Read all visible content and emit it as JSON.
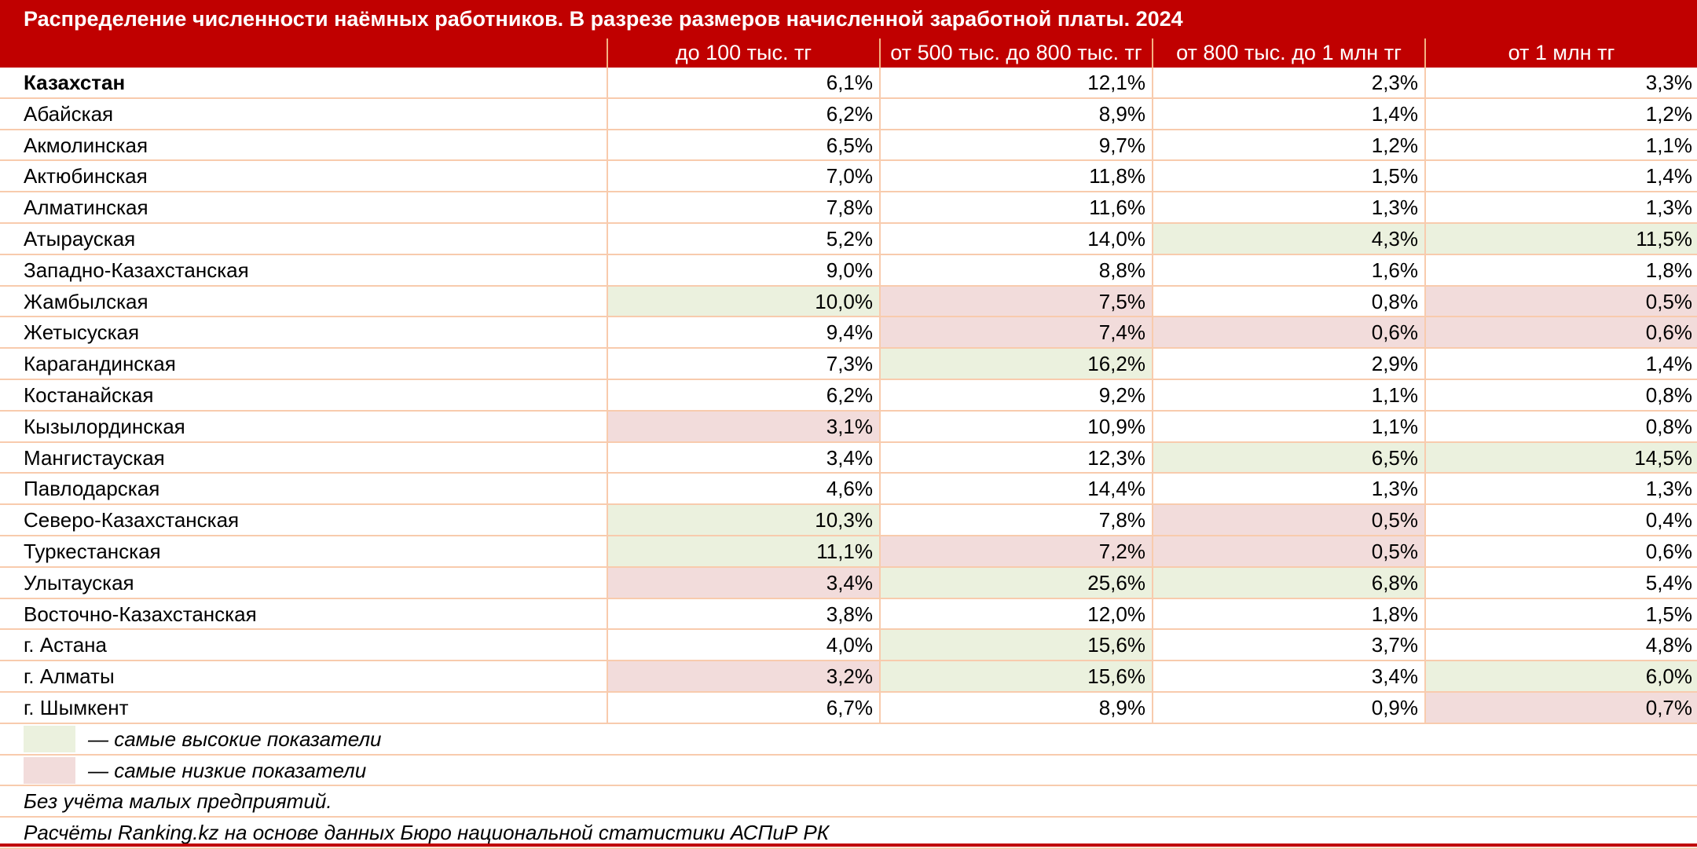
{
  "title": "Распределение численности наёмных работников. В разрезе размеров начисленной заработной платы. 2024",
  "headers": [
    "",
    "до 100 тыс. тг",
    "от 500 тыс. до 800 тыс. тг",
    "от 800 тыс. до 1 млн тг",
    "от 1 млн тг"
  ],
  "rows": [
    {
      "region": "Казахстан",
      "values": [
        "6,1%",
        "12,1%",
        "2,3%",
        "3,3%"
      ],
      "marks": [
        "",
        "",
        "",
        ""
      ],
      "bold": true
    },
    {
      "region": "Абайская",
      "values": [
        "6,2%",
        "8,9%",
        "1,4%",
        "1,2%"
      ],
      "marks": [
        "",
        "",
        "",
        ""
      ]
    },
    {
      "region": "Акмолинская",
      "values": [
        "6,5%",
        "9,7%",
        "1,2%",
        "1,1%"
      ],
      "marks": [
        "",
        "",
        "",
        ""
      ]
    },
    {
      "region": "Актюбинская",
      "values": [
        "7,0%",
        "11,8%",
        "1,5%",
        "1,4%"
      ],
      "marks": [
        "",
        "",
        "",
        ""
      ]
    },
    {
      "region": "Алматинская",
      "values": [
        "7,8%",
        "11,6%",
        "1,3%",
        "1,3%"
      ],
      "marks": [
        "",
        "",
        "",
        ""
      ]
    },
    {
      "region": "Атырауская",
      "values": [
        "5,2%",
        "14,0%",
        "4,3%",
        "11,5%"
      ],
      "marks": [
        "",
        "",
        "hi",
        "hi"
      ]
    },
    {
      "region": "Западно-Казахстанская",
      "values": [
        "9,0%",
        "8,8%",
        "1,6%",
        "1,8%"
      ],
      "marks": [
        "",
        "",
        "",
        ""
      ]
    },
    {
      "region": "Жамбылская",
      "values": [
        "10,0%",
        "7,5%",
        "0,8%",
        "0,5%"
      ],
      "marks": [
        "hi",
        "lo",
        "",
        "lo"
      ]
    },
    {
      "region": "Жетысуская",
      "values": [
        "9,4%",
        "7,4%",
        "0,6%",
        "0,6%"
      ],
      "marks": [
        "",
        "lo",
        "lo",
        "lo"
      ]
    },
    {
      "region": "Карагандинская",
      "values": [
        "7,3%",
        "16,2%",
        "2,9%",
        "1,4%"
      ],
      "marks": [
        "",
        "hi",
        "",
        ""
      ]
    },
    {
      "region": "Костанайская",
      "values": [
        "6,2%",
        "9,2%",
        "1,1%",
        "0,8%"
      ],
      "marks": [
        "",
        "",
        "",
        ""
      ]
    },
    {
      "region": "Кызылординская",
      "values": [
        "3,1%",
        "10,9%",
        "1,1%",
        "0,8%"
      ],
      "marks": [
        "lo",
        "",
        "",
        ""
      ]
    },
    {
      "region": "Мангистауская",
      "values": [
        "3,4%",
        "12,3%",
        "6,5%",
        "14,5%"
      ],
      "marks": [
        "",
        "",
        "hi",
        "hi"
      ]
    },
    {
      "region": "Павлодарская",
      "values": [
        "4,6%",
        "14,4%",
        "1,3%",
        "1,3%"
      ],
      "marks": [
        "",
        "",
        "",
        ""
      ]
    },
    {
      "region": "Северо-Казахстанская",
      "values": [
        "10,3%",
        "7,8%",
        "0,5%",
        "0,4%"
      ],
      "marks": [
        "hi",
        "",
        "lo",
        ""
      ]
    },
    {
      "region": "Туркестанская",
      "values": [
        "11,1%",
        "7,2%",
        "0,5%",
        "0,6%"
      ],
      "marks": [
        "hi",
        "lo",
        "lo",
        ""
      ]
    },
    {
      "region": "Улытауская",
      "values": [
        "3,4%",
        "25,6%",
        "6,8%",
        "5,4%"
      ],
      "marks": [
        "lo",
        "hi",
        "hi",
        ""
      ]
    },
    {
      "region": "Восточно-Казахстанская",
      "values": [
        "3,8%",
        "12,0%",
        "1,8%",
        "1,5%"
      ],
      "marks": [
        "",
        "",
        "",
        ""
      ]
    },
    {
      "region": "г. Астана",
      "values": [
        "4,0%",
        "15,6%",
        "3,7%",
        "4,8%"
      ],
      "marks": [
        "",
        "hi",
        "",
        ""
      ]
    },
    {
      "region": "г. Алматы",
      "values": [
        "3,2%",
        "15,6%",
        "3,4%",
        "6,0%"
      ],
      "marks": [
        "lo",
        "hi",
        "",
        "hi"
      ]
    },
    {
      "region": "г. Шымкент",
      "values": [
        "6,7%",
        "8,9%",
        "0,9%",
        "0,7%"
      ],
      "marks": [
        "",
        "",
        "",
        "lo"
      ]
    }
  ],
  "legend": {
    "high_label": "— самые высокие показатели",
    "low_label": "— самые низкие показатели",
    "high_color": "#ebf1de",
    "low_color": "#f2dcdb"
  },
  "notes": [
    "Без учёта малых предприятий.",
    "Расчёты Ranking.kz на основе данных Бюро национальной статистики АСПиР РК"
  ],
  "colors": {
    "header_bg": "#c00000",
    "grid": "#f8cbad"
  }
}
